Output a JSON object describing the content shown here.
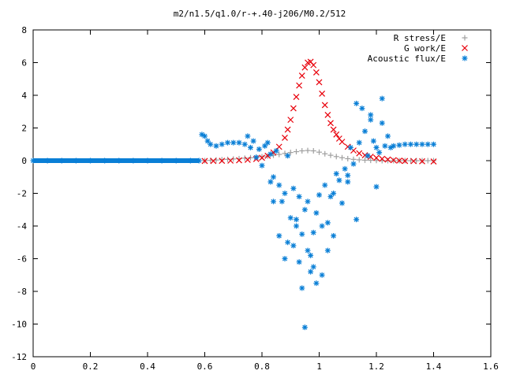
{
  "chart_data": {
    "type": "scatter",
    "title": "m2/n1.5/q1.0/r-+.40-j206/M0.2/512",
    "xlabel": "",
    "ylabel": "",
    "xlim": [
      0,
      1.6
    ],
    "ylim": [
      -12,
      8
    ],
    "xticks": [
      0,
      0.2,
      0.4,
      0.6,
      0.8,
      1,
      1.2,
      1.4,
      1.6
    ],
    "yticks": [
      -12,
      -10,
      -8,
      -6,
      -4,
      -2,
      0,
      2,
      4,
      6,
      8
    ],
    "grid": false,
    "legend_position": "top-right",
    "series": [
      {
        "name": "R stress/E",
        "marker": "plus",
        "color": "#a0a0a0",
        "x": [
          0.6,
          0.62,
          0.64,
          0.66,
          0.68,
          0.7,
          0.72,
          0.74,
          0.76,
          0.78,
          0.8,
          0.82,
          0.84,
          0.86,
          0.88,
          0.9,
          0.92,
          0.94,
          0.96,
          0.98,
          1.0,
          1.02,
          1.04,
          1.06,
          1.08,
          1.1,
          1.12,
          1.14,
          1.16,
          1.18,
          1.2,
          1.22,
          1.24,
          1.26,
          1.28,
          1.3,
          1.32,
          1.34,
          1.36,
          1.38,
          1.4
        ],
        "y": [
          0.0,
          0.02,
          0.04,
          0.06,
          0.08,
          0.1,
          0.12,
          0.15,
          0.18,
          0.21,
          0.24,
          0.28,
          0.33,
          0.38,
          0.44,
          0.5,
          0.55,
          0.6,
          0.62,
          0.6,
          0.52,
          0.42,
          0.33,
          0.25,
          0.18,
          0.12,
          0.08,
          0.05,
          0.03,
          0.02,
          0.01,
          0.0,
          0.0,
          0.0,
          0.0,
          0.0,
          0.0,
          0.0,
          0.0,
          0.0,
          0.0
        ]
      },
      {
        "name": "G work/E",
        "marker": "cross",
        "color": "#e8000b",
        "x": [
          0.6,
          0.63,
          0.66,
          0.69,
          0.72,
          0.75,
          0.78,
          0.8,
          0.82,
          0.84,
          0.86,
          0.88,
          0.89,
          0.9,
          0.91,
          0.92,
          0.93,
          0.94,
          0.95,
          0.96,
          0.97,
          0.98,
          0.99,
          1.0,
          1.01,
          1.02,
          1.03,
          1.04,
          1.05,
          1.06,
          1.07,
          1.08,
          1.1,
          1.12,
          1.14,
          1.16,
          1.18,
          1.2,
          1.22,
          1.24,
          1.26,
          1.28,
          1.3,
          1.33,
          1.36,
          1.4
        ],
        "y": [
          -0.02,
          -0.02,
          -0.01,
          0.0,
          0.02,
          0.05,
          0.1,
          0.18,
          0.3,
          0.5,
          0.85,
          1.4,
          1.9,
          2.5,
          3.2,
          3.9,
          4.6,
          5.2,
          5.7,
          6.0,
          6.05,
          5.85,
          5.4,
          4.8,
          4.1,
          3.4,
          2.8,
          2.3,
          1.9,
          1.6,
          1.35,
          1.15,
          0.85,
          0.62,
          0.45,
          0.33,
          0.24,
          0.17,
          0.11,
          0.07,
          0.03,
          0.0,
          -0.02,
          -0.03,
          -0.04,
          -0.05
        ]
      },
      {
        "name": "Acoustic flux/E",
        "marker": "star",
        "color": "#0a7fd6",
        "x": [
          0.0,
          0.05,
          0.1,
          0.15,
          0.2,
          0.25,
          0.3,
          0.35,
          0.4,
          0.45,
          0.5,
          0.55,
          0.58,
          0.59,
          0.6,
          0.61,
          0.62,
          0.64,
          0.66,
          0.68,
          0.7,
          0.72,
          0.74,
          0.75,
          0.76,
          0.77,
          0.78,
          0.79,
          0.8,
          0.81,
          0.82,
          0.83,
          0.84,
          0.85,
          0.86,
          0.87,
          0.88,
          0.89,
          0.9,
          0.91,
          0.92,
          0.93,
          0.94,
          0.95,
          0.96,
          0.97,
          0.98,
          0.99,
          1.0,
          1.01,
          1.02,
          1.03,
          1.04,
          1.05,
          1.06,
          1.07,
          1.08,
          1.09,
          1.1,
          1.11,
          1.12,
          1.13,
          1.14,
          1.15,
          1.16,
          1.17,
          1.18,
          1.19,
          1.2,
          1.21,
          1.22,
          1.23,
          1.24,
          1.25,
          1.26,
          1.28,
          1.3,
          1.32,
          1.34,
          1.36,
          1.38,
          1.4,
          0.95,
          0.93,
          0.97,
          0.99,
          0.91,
          0.94,
          1.01,
          0.88,
          0.86,
          0.84,
          0.83,
          0.89,
          1.03,
          1.05,
          0.92,
          0.98,
          1.1,
          1.13,
          1.18,
          1.2,
          1.22,
          0.96
        ],
        "y": [
          0.0,
          0.0,
          0.0,
          0.0,
          0.0,
          0.0,
          0.0,
          0.0,
          0.0,
          0.0,
          0.0,
          0.0,
          0.0,
          1.6,
          1.5,
          1.2,
          1.0,
          0.9,
          1.0,
          1.1,
          1.1,
          1.1,
          1.0,
          1.5,
          0.8,
          1.2,
          0.2,
          0.7,
          -0.3,
          0.9,
          1.1,
          0.4,
          -1.0,
          0.6,
          -1.5,
          -2.5,
          -2.0,
          0.3,
          -3.5,
          -1.7,
          -4.0,
          -2.2,
          -4.5,
          -3.0,
          -2.5,
          -5.8,
          -6.5,
          -3.2,
          -2.1,
          -4.0,
          -1.5,
          -3.8,
          -2.2,
          -4.6,
          -0.8,
          -1.2,
          -2.6,
          -0.5,
          -1.3,
          0.8,
          -0.2,
          3.5,
          1.1,
          3.2,
          1.8,
          0.3,
          2.5,
          1.2,
          0.8,
          0.5,
          3.8,
          0.9,
          1.5,
          0.8,
          0.9,
          0.95,
          1.0,
          1.0,
          1.0,
          1.0,
          1.0,
          1.0,
          -10.2,
          -6.2,
          -6.8,
          -7.5,
          -5.2,
          -7.8,
          -7.0,
          -6.0,
          -4.6,
          -2.5,
          -1.3,
          -5.0,
          -5.5,
          -2.0,
          -3.6,
          -4.4,
          -0.9,
          -3.6,
          2.8,
          -1.6,
          2.3,
          -5.5
        ]
      }
    ]
  }
}
